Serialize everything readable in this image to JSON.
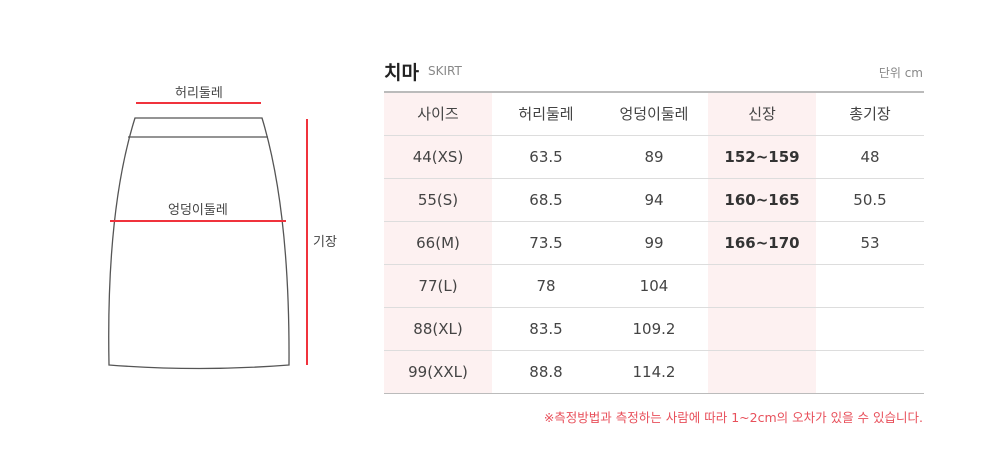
{
  "diagram": {
    "waist_label": "허리둘레",
    "hip_label": "엉덩이둘레",
    "length_label": "기장",
    "line_color": "#f0323c"
  },
  "header": {
    "title": "치마",
    "subtitle": "SKIRT",
    "unit": "단위 cm"
  },
  "table": {
    "columns": [
      "사이즈",
      "허리둘레",
      "엉덩이둘레",
      "신장",
      "총기장"
    ],
    "rows": [
      [
        "44(XS)",
        "63.5",
        "89",
        "152~159",
        "48"
      ],
      [
        "55(S)",
        "68.5",
        "94",
        "160~165",
        "50.5"
      ],
      [
        "66(M)",
        "73.5",
        "99",
        "166~170",
        "53"
      ],
      [
        "77(L)",
        "78",
        "104",
        "",
        ""
      ],
      [
        "88(XL)",
        "83.5",
        "109.2",
        "",
        ""
      ],
      [
        "99(XXL)",
        "88.8",
        "114.2",
        "",
        ""
      ]
    ],
    "highlight_color": "#fdf1f1"
  },
  "note": "※측정방법과 측정하는 사람에 따라 1~2cm의 오차가 있을 수 있습니다."
}
